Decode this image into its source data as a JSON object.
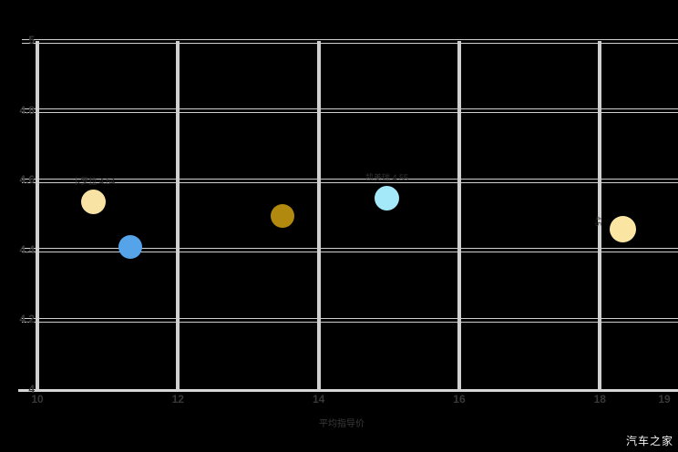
{
  "colors": {
    "background": "#000000",
    "gridline": "#d0d0d0",
    "axis_line": "#d6d6d6",
    "tick_label": "#383838",
    "watermark_text": "#f2f2f2"
  },
  "watermark": {
    "text": "汽车之家"
  },
  "chart_data": {
    "type": "scatter",
    "title": "",
    "xlabel": "平均指导价",
    "ylabel": "",
    "xlim": [
      10,
      19.02
    ],
    "ylim": [
      4,
      5
    ],
    "grid": true,
    "legend": "none",
    "x_ticks": [
      {
        "value": 10,
        "label": "10"
      },
      {
        "value": 12,
        "label": "12"
      },
      {
        "value": 14,
        "label": "14"
      },
      {
        "value": 16,
        "label": "16"
      },
      {
        "value": 18,
        "label": "18"
      },
      {
        "value": 19,
        "label": "19"
      }
    ],
    "y_ticks": [
      {
        "value": 5,
        "label": "5"
      },
      {
        "value": 4.8,
        "label": "4.8"
      },
      {
        "value": 4.6,
        "label": "4.6"
      },
      {
        "value": 4.4,
        "label": "4.4"
      },
      {
        "value": 4.2,
        "label": "4.2"
      },
      {
        "value": 4,
        "label": "4"
      }
    ],
    "points": [
      {
        "x": 10.8,
        "y": 4.54,
        "radius_px": 13.5,
        "color": "#F8E3A4",
        "label": {
          "text": "卡罗拉 4.54",
          "placement": "above"
        }
      },
      {
        "x": 11.32,
        "y": 4.41,
        "radius_px": 13,
        "color": "#55A3E8"
      },
      {
        "x": 13.49,
        "y": 4.5,
        "radius_px": 13,
        "color": "#B1890E"
      },
      {
        "x": 14.97,
        "y": 4.55,
        "radius_px": 13.5,
        "color": "#A4E9F9",
        "label": {
          "text": "凯美瑞 4.55",
          "placement": "above"
        }
      },
      {
        "x": 18.33,
        "y": 4.46,
        "radius_px": 14.5,
        "color": "#FAE6A2",
        "label": {
          "text": "4.5",
          "placement": "left-vertical",
          "dx": -28,
          "dy": -15
        }
      }
    ]
  }
}
